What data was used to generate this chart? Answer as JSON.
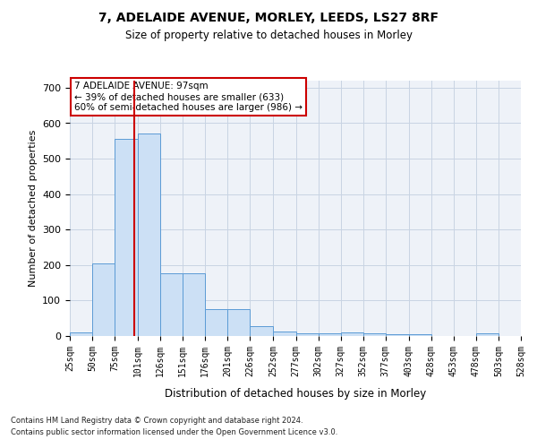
{
  "title1": "7, ADELAIDE AVENUE, MORLEY, LEEDS, LS27 8RF",
  "title2": "Size of property relative to detached houses in Morley",
  "xlabel": "Distribution of detached houses by size in Morley",
  "ylabel": "Number of detached properties",
  "annotation_line1": "7 ADELAIDE AVENUE: 97sqm",
  "annotation_line2": "← 39% of detached houses are smaller (633)",
  "annotation_line3": "60% of semi-detached houses are larger (986) →",
  "vline_x": 97,
  "bin_edges": [
    25,
    50,
    75,
    101,
    126,
    151,
    176,
    201,
    226,
    252,
    277,
    302,
    327,
    352,
    377,
    403,
    428,
    453,
    478,
    503,
    528
  ],
  "bar_heights": [
    10,
    205,
    557,
    570,
    178,
    178,
    75,
    75,
    28,
    12,
    8,
    8,
    10,
    8,
    5,
    5,
    0,
    0,
    7,
    0,
    0
  ],
  "bar_color": "#cce0f5",
  "bar_edgecolor": "#5b9bd5",
  "vline_color": "#cc0000",
  "grid_color": "#c8d4e3",
  "background_color": "#eef2f8",
  "ylim": [
    0,
    720
  ],
  "yticks": [
    0,
    100,
    200,
    300,
    400,
    500,
    600,
    700
  ],
  "footnote1": "Contains HM Land Registry data © Crown copyright and database right 2024.",
  "footnote2": "Contains public sector information licensed under the Open Government Licence v3.0."
}
